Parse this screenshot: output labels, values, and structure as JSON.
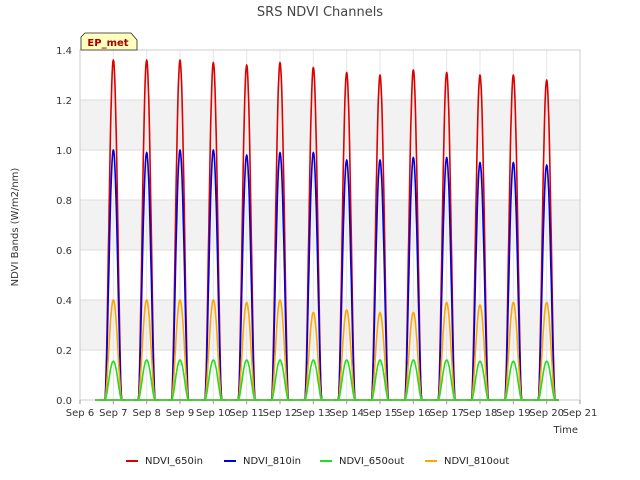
{
  "chart_data": {
    "type": "line",
    "title": "SRS NDVI Channels",
    "xlabel": "Time",
    "ylabel": "NDVI Bands (W/m2/nm)",
    "annotation": "EP_met",
    "xlim_days": [
      6,
      21
    ],
    "ylim": [
      0.0,
      1.4
    ],
    "x_ticks": [
      "Sep 6",
      "Sep 7",
      "Sep 8",
      "Sep 9",
      "Sep 10",
      "Sep 11",
      "Sep 12",
      "Sep 13",
      "Sep 14",
      "Sep 15",
      "Sep 16",
      "Sep 17",
      "Sep 18",
      "Sep 19",
      "Sep 20",
      "Sep 21"
    ],
    "y_ticks": [
      "0.0",
      "0.2",
      "0.4",
      "0.6",
      "0.8",
      "1.0",
      "1.2",
      "1.4"
    ],
    "grid": true,
    "legend_position": "bottom",
    "days": [
      "Sep 7",
      "Sep 8",
      "Sep 9",
      "Sep 10",
      "Sep 11",
      "Sep 12",
      "Sep 13",
      "Sep 14",
      "Sep 15",
      "Sep 16",
      "Sep 17",
      "Sep 18",
      "Sep 19",
      "Sep 20"
    ],
    "series": [
      {
        "name": "NDVI_650in",
        "color": "#dd0000",
        "daily_peaks": [
          1.36,
          1.36,
          1.36,
          1.35,
          1.34,
          1.35,
          1.33,
          1.31,
          1.3,
          1.32,
          1.31,
          1.3,
          1.3,
          1.28
        ]
      },
      {
        "name": "NDVI_810in",
        "color": "#0000dd",
        "daily_peaks": [
          1.0,
          0.99,
          1.0,
          1.0,
          0.98,
          0.99,
          0.99,
          0.96,
          0.96,
          0.97,
          0.97,
          0.95,
          0.95,
          0.94
        ]
      },
      {
        "name": "NDVI_650out",
        "color": "#22dd22",
        "daily_peaks": [
          0.155,
          0.16,
          0.16,
          0.16,
          0.16,
          0.16,
          0.16,
          0.16,
          0.16,
          0.16,
          0.16,
          0.155,
          0.155,
          0.155
        ]
      },
      {
        "name": "NDVI_810out",
        "color": "#ffa500",
        "daily_peaks": [
          0.4,
          0.4,
          0.4,
          0.4,
          0.39,
          0.4,
          0.35,
          0.36,
          0.35,
          0.35,
          0.39,
          0.38,
          0.39,
          0.39
        ]
      }
    ]
  }
}
